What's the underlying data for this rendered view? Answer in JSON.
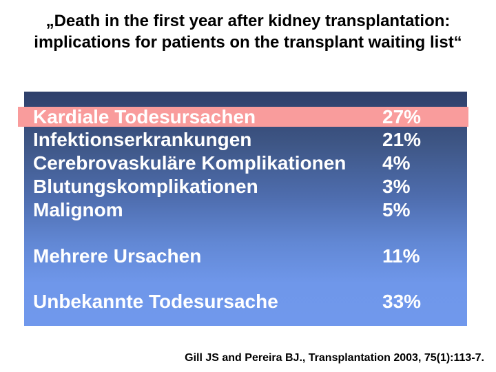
{
  "slide": {
    "title": {
      "line1": "„Death in the first year after kidney transplantation:",
      "line2": "implications for patients on the transplant waiting list“"
    },
    "table": {
      "highlight_color": "#f99c9c",
      "panel_gradient_top": "#2e3f6a",
      "panel_gradient_bottom": "#7098ec",
      "text_color": "#ffffff",
      "rows": [
        {
          "label": "Kardiale Todesursachen",
          "value": "27%",
          "highlighted": true
        },
        {
          "label": "Infektionserkrankungen",
          "value": "21%",
          "highlighted": false
        },
        {
          "label": "Cerebrovaskuläre Komplikationen",
          "value": "4%",
          "highlighted": false
        },
        {
          "label": "Blutungskomplikationen",
          "value": "3%",
          "highlighted": false
        },
        {
          "label": "Malignom",
          "value": "5%",
          "highlighted": false
        },
        {
          "label": "Mehrere Ursachen",
          "value": "11%",
          "highlighted": false
        },
        {
          "label": "Unbekannte Todesursache",
          "value": "33%",
          "highlighted": false
        }
      ]
    },
    "citation": "Gill JS and Pereira BJ., Transplantation 2003, 75(1):113-7."
  }
}
